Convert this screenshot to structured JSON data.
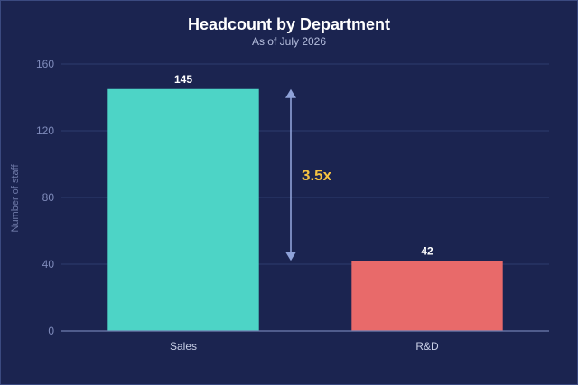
{
  "chart_data": {
    "type": "bar",
    "title": "Headcount by Department",
    "subtitle": "As of July 2026",
    "xlabel": "",
    "ylabel": "Number of staff",
    "categories": [
      "Sales",
      "R&D"
    ],
    "values": [
      145,
      42
    ],
    "value_labels": [
      "145",
      "42"
    ],
    "bar_colors": [
      "#4dd4c6",
      "#e86a6a"
    ],
    "ylim": [
      0,
      160
    ],
    "yticks": [
      0,
      40,
      80,
      120,
      160
    ],
    "ytick_labels": [
      "0",
      "40",
      "80",
      "120",
      "160"
    ],
    "grid": true,
    "annotation": {
      "text": "3.5x",
      "from_value": 145,
      "to_value": 42,
      "color": "#f5c242",
      "arrow_color": "#8fa2d8"
    }
  },
  "colors": {
    "background": "#1b2450",
    "grid": "#2e3b6e",
    "axis": "#6f7db0"
  }
}
